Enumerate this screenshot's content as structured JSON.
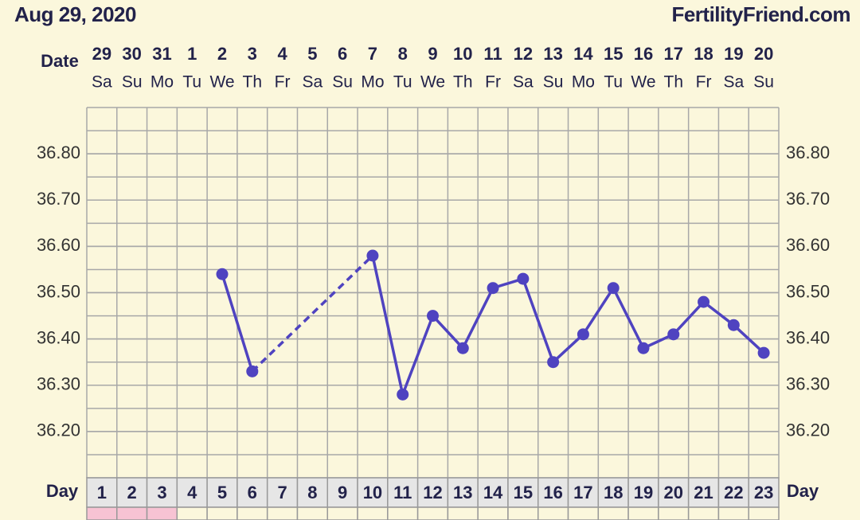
{
  "header": {
    "date": "Aug 29, 2020",
    "site": "FertilityFriend.com"
  },
  "chart_data": {
    "type": "line",
    "date_label": "Date",
    "dates": [
      "29",
      "30",
      "31",
      "1",
      "2",
      "3",
      "4",
      "5",
      "6",
      "7",
      "8",
      "9",
      "10",
      "11",
      "12",
      "13",
      "14",
      "15",
      "16",
      "17",
      "18",
      "19",
      "20"
    ],
    "weekdays": [
      "Sa",
      "Su",
      "Mo",
      "Tu",
      "We",
      "Th",
      "Fr",
      "Sa",
      "Su",
      "Mo",
      "Tu",
      "We",
      "Th",
      "Fr",
      "Sa",
      "Su",
      "Mo",
      "Tu",
      "We",
      "Th",
      "Fr",
      "Sa",
      "Su"
    ],
    "x_label": "Day",
    "categories": [
      "1",
      "2",
      "3",
      "4",
      "5",
      "6",
      "7",
      "8",
      "9",
      "10",
      "11",
      "12",
      "13",
      "14",
      "15",
      "16",
      "17",
      "18",
      "19",
      "20",
      "21",
      "22",
      "23"
    ],
    "values": [
      null,
      null,
      null,
      null,
      36.54,
      36.33,
      null,
      null,
      null,
      36.58,
      36.28,
      36.45,
      36.38,
      36.51,
      36.53,
      36.35,
      36.41,
      36.51,
      36.38,
      36.41,
      36.48,
      36.43,
      36.37
    ],
    "color": "#4f43c0",
    "ylim": [
      36.1,
      36.9
    ],
    "yticks": [
      {
        "value": 36.2,
        "label": "36.20"
      },
      {
        "value": 36.3,
        "label": "36.30"
      },
      {
        "value": 36.4,
        "label": "36.40"
      },
      {
        "value": 36.5,
        "label": "36.50"
      },
      {
        "value": 36.6,
        "label": "36.60"
      },
      {
        "value": 36.7,
        "label": "36.70"
      },
      {
        "value": 36.8,
        "label": "36.80"
      }
    ],
    "grid": true
  }
}
